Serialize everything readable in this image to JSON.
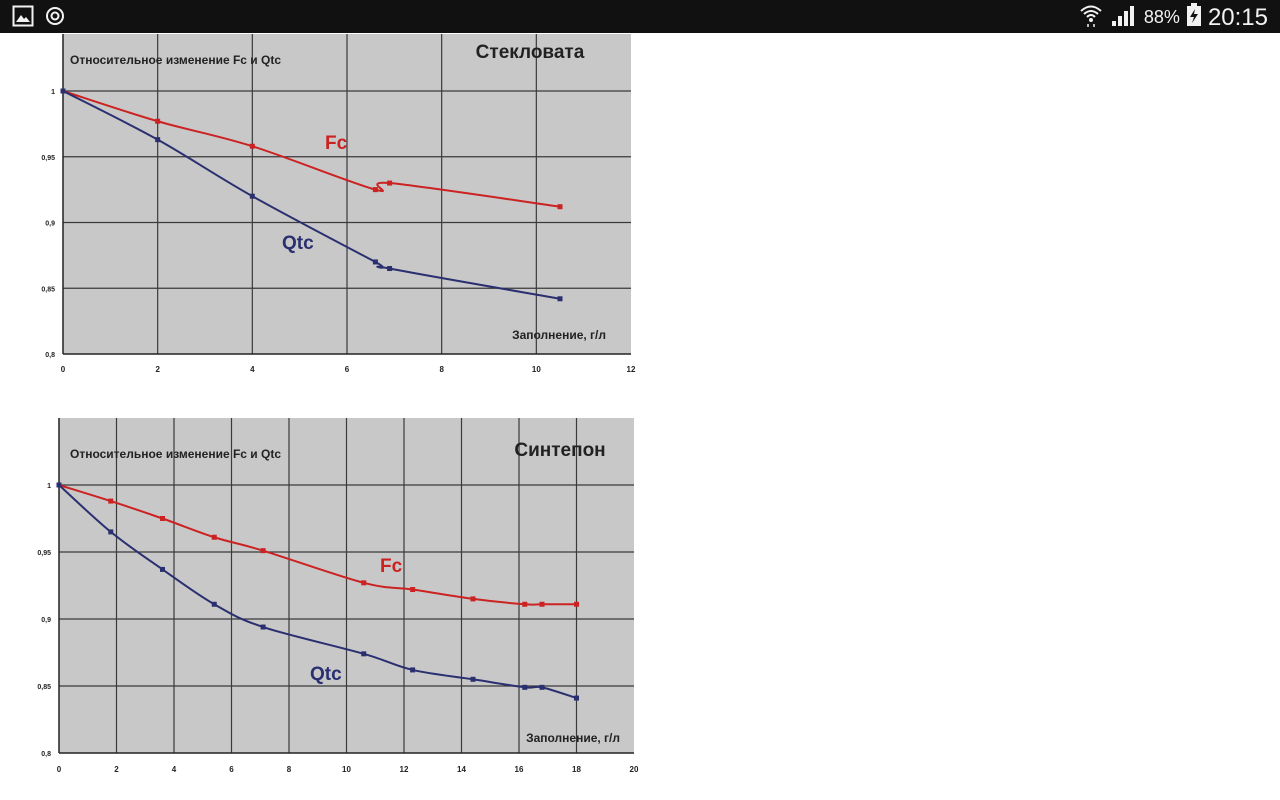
{
  "status_bar": {
    "battery": "88%",
    "time": "20:15",
    "left_icons": [
      "gallery-icon",
      "sync-icon"
    ],
    "right_icons": [
      "wifi-icon",
      "signal-icon",
      "battery-charging-icon"
    ]
  },
  "chart_data": [
    {
      "type": "line",
      "title": "Стекловата",
      "ylabel": "Относительное изменение Fc и Qtc",
      "xlabel": "Заполнение, г/л",
      "xlim": [
        0,
        12
      ],
      "ylim": [
        0.8,
        1.0
      ],
      "x_ticks": [
        "0",
        "2",
        "4",
        "6",
        "8",
        "10",
        "12"
      ],
      "y_ticks": [
        "0,8",
        "0,85",
        "0,9",
        "0,95",
        "1"
      ],
      "grid": true,
      "series": [
        {
          "name": "Fc",
          "color": "#cc2222",
          "points": [
            [
              0,
              1.0
            ],
            [
              2,
              0.977
            ],
            [
              4,
              0.958
            ],
            [
              6.6,
              0.925
            ],
            [
              6.9,
              0.93
            ],
            [
              10.5,
              0.912
            ]
          ]
        },
        {
          "name": "Qtc",
          "color": "#2a2f70",
          "points": [
            [
              0,
              1.0
            ],
            [
              2,
              0.963
            ],
            [
              4,
              0.92
            ],
            [
              6.6,
              0.87
            ],
            [
              6.9,
              0.865
            ],
            [
              10.5,
              0.842
            ]
          ]
        }
      ]
    },
    {
      "type": "line",
      "title": "Синтепон",
      "ylabel": "Относительное изменение Fc и Qtc",
      "xlabel": "Заполнение, г/л",
      "xlim": [
        0,
        20
      ],
      "ylim": [
        0.8,
        1.0
      ],
      "x_ticks": [
        "0",
        "2",
        "4",
        "6",
        "8",
        "10",
        "12",
        "14",
        "16",
        "18",
        "20"
      ],
      "y_ticks": [
        "0,8",
        "0,85",
        "0,9",
        "0,95",
        "1"
      ],
      "grid": true,
      "series": [
        {
          "name": "Fc",
          "color": "#cc2222",
          "points": [
            [
              0,
              1.0
            ],
            [
              1.8,
              0.988
            ],
            [
              3.6,
              0.975
            ],
            [
              5.4,
              0.961
            ],
            [
              7.1,
              0.951
            ],
            [
              10.6,
              0.927
            ],
            [
              12.3,
              0.922
            ],
            [
              14.4,
              0.915
            ],
            [
              16.2,
              0.911
            ],
            [
              16.8,
              0.911
            ],
            [
              18,
              0.911
            ]
          ]
        },
        {
          "name": "Qtc",
          "color": "#2a2f70",
          "points": [
            [
              0,
              1.0
            ],
            [
              1.8,
              0.965
            ],
            [
              3.6,
              0.937
            ],
            [
              5.4,
              0.911
            ],
            [
              7.1,
              0.894
            ],
            [
              10.6,
              0.874
            ],
            [
              12.3,
              0.862
            ],
            [
              14.4,
              0.855
            ],
            [
              16.2,
              0.849
            ],
            [
              16.8,
              0.849
            ],
            [
              18,
              0.841
            ]
          ]
        }
      ]
    }
  ]
}
